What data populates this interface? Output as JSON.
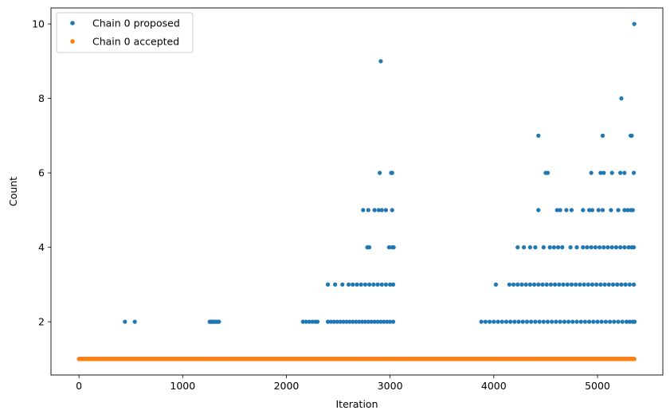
{
  "chart_data": {
    "type": "scatter",
    "title": "",
    "xlabel": "Iteration",
    "ylabel": "Count",
    "xlim": [
      -270,
      5630
    ],
    "ylim": [
      0.57,
      10.43
    ],
    "xticks": [
      0,
      1000,
      2000,
      3000,
      4000,
      5000
    ],
    "yticks": [
      2,
      4,
      6,
      8,
      10
    ],
    "legend": "top-left",
    "grid": false,
    "series": [
      {
        "name": "Chain 0 proposed",
        "color": "#1f77b4",
        "x_range": [
          0,
          5357
        ],
        "baseline_count": 1,
        "points": [
          [
            443,
            2
          ],
          [
            538,
            2
          ],
          [
            1260,
            2
          ],
          [
            1270,
            2
          ],
          [
            1280,
            2
          ],
          [
            1290,
            2
          ],
          [
            1300,
            2
          ],
          [
            1310,
            2
          ],
          [
            1320,
            2
          ],
          [
            1335,
            2
          ],
          [
            1350,
            2
          ],
          [
            2160,
            2
          ],
          [
            2190,
            2
          ],
          [
            2220,
            2
          ],
          [
            2250,
            2
          ],
          [
            2280,
            2
          ],
          [
            2300,
            2
          ],
          [
            2400,
            2
          ],
          [
            2430,
            2
          ],
          [
            2460,
            2
          ],
          [
            2490,
            2
          ],
          [
            2520,
            2
          ],
          [
            2550,
            2
          ],
          [
            2580,
            2
          ],
          [
            2610,
            2
          ],
          [
            2640,
            2
          ],
          [
            2670,
            2
          ],
          [
            2700,
            2
          ],
          [
            2730,
            2
          ],
          [
            2760,
            2
          ],
          [
            2790,
            2
          ],
          [
            2820,
            2
          ],
          [
            2850,
            2
          ],
          [
            2880,
            2
          ],
          [
            2910,
            2
          ],
          [
            2940,
            2
          ],
          [
            2970,
            2
          ],
          [
            3000,
            2
          ],
          [
            3030,
            2
          ],
          [
            2400,
            3
          ],
          [
            2470,
            3
          ],
          [
            2540,
            3
          ],
          [
            2600,
            3
          ],
          [
            2640,
            3
          ],
          [
            2680,
            3
          ],
          [
            2720,
            3
          ],
          [
            2760,
            3
          ],
          [
            2800,
            3
          ],
          [
            2840,
            3
          ],
          [
            2880,
            3
          ],
          [
            2920,
            3
          ],
          [
            2960,
            3
          ],
          [
            3000,
            3
          ],
          [
            3030,
            3
          ],
          [
            2780,
            4
          ],
          [
            2800,
            4
          ],
          [
            2990,
            4
          ],
          [
            3020,
            4
          ],
          [
            3035,
            4
          ],
          [
            2740,
            5
          ],
          [
            2790,
            5
          ],
          [
            2850,
            5
          ],
          [
            2890,
            5
          ],
          [
            2920,
            5
          ],
          [
            2960,
            5
          ],
          [
            3020,
            5
          ],
          [
            2900,
            6
          ],
          [
            3010,
            6
          ],
          [
            3020,
            6
          ],
          [
            2910,
            9
          ],
          [
            3880,
            2
          ],
          [
            3920,
            2
          ],
          [
            3960,
            2
          ],
          [
            4000,
            2
          ],
          [
            4040,
            2
          ],
          [
            4080,
            2
          ],
          [
            4120,
            2
          ],
          [
            4160,
            2
          ],
          [
            4200,
            2
          ],
          [
            4240,
            2
          ],
          [
            4280,
            2
          ],
          [
            4320,
            2
          ],
          [
            4360,
            2
          ],
          [
            4400,
            2
          ],
          [
            4440,
            2
          ],
          [
            4480,
            2
          ],
          [
            4520,
            2
          ],
          [
            4560,
            2
          ],
          [
            4600,
            2
          ],
          [
            4640,
            2
          ],
          [
            4680,
            2
          ],
          [
            4720,
            2
          ],
          [
            4760,
            2
          ],
          [
            4800,
            2
          ],
          [
            4840,
            2
          ],
          [
            4880,
            2
          ],
          [
            4920,
            2
          ],
          [
            4960,
            2
          ],
          [
            5000,
            2
          ],
          [
            5040,
            2
          ],
          [
            5080,
            2
          ],
          [
            5120,
            2
          ],
          [
            5160,
            2
          ],
          [
            5200,
            2
          ],
          [
            5240,
            2
          ],
          [
            5280,
            2
          ],
          [
            5310,
            2
          ],
          [
            5340,
            2
          ],
          [
            5357,
            2
          ],
          [
            4020,
            3
          ],
          [
            4150,
            3
          ],
          [
            4190,
            3
          ],
          [
            4230,
            3
          ],
          [
            4270,
            3
          ],
          [
            4310,
            3
          ],
          [
            4350,
            3
          ],
          [
            4390,
            3
          ],
          [
            4430,
            3
          ],
          [
            4470,
            3
          ],
          [
            4510,
            3
          ],
          [
            4550,
            3
          ],
          [
            4590,
            3
          ],
          [
            4630,
            3
          ],
          [
            4670,
            3
          ],
          [
            4710,
            3
          ],
          [
            4750,
            3
          ],
          [
            4790,
            3
          ],
          [
            4830,
            3
          ],
          [
            4870,
            3
          ],
          [
            4910,
            3
          ],
          [
            4950,
            3
          ],
          [
            4990,
            3
          ],
          [
            5030,
            3
          ],
          [
            5070,
            3
          ],
          [
            5110,
            3
          ],
          [
            5150,
            3
          ],
          [
            5190,
            3
          ],
          [
            5230,
            3
          ],
          [
            5270,
            3
          ],
          [
            5310,
            3
          ],
          [
            5350,
            3
          ],
          [
            4230,
            4
          ],
          [
            4290,
            4
          ],
          [
            4350,
            4
          ],
          [
            4400,
            4
          ],
          [
            4480,
            4
          ],
          [
            4540,
            4
          ],
          [
            4580,
            4
          ],
          [
            4620,
            4
          ],
          [
            4660,
            4
          ],
          [
            4740,
            4
          ],
          [
            4800,
            4
          ],
          [
            4860,
            4
          ],
          [
            4900,
            4
          ],
          [
            4940,
            4
          ],
          [
            4980,
            4
          ],
          [
            5020,
            4
          ],
          [
            5060,
            4
          ],
          [
            5100,
            4
          ],
          [
            5140,
            4
          ],
          [
            5180,
            4
          ],
          [
            5220,
            4
          ],
          [
            5260,
            4
          ],
          [
            5300,
            4
          ],
          [
            5330,
            4
          ],
          [
            5350,
            4
          ],
          [
            4430,
            5
          ],
          [
            4610,
            5
          ],
          [
            4640,
            5
          ],
          [
            4700,
            5
          ],
          [
            4750,
            5
          ],
          [
            4860,
            5
          ],
          [
            4920,
            5
          ],
          [
            4950,
            5
          ],
          [
            5010,
            5
          ],
          [
            5050,
            5
          ],
          [
            5130,
            5
          ],
          [
            5200,
            5
          ],
          [
            5260,
            5
          ],
          [
            5290,
            5
          ],
          [
            5320,
            5
          ],
          [
            5340,
            5
          ],
          [
            4500,
            6
          ],
          [
            4520,
            6
          ],
          [
            4940,
            6
          ],
          [
            5030,
            6
          ],
          [
            5060,
            6
          ],
          [
            5140,
            6
          ],
          [
            5220,
            6
          ],
          [
            5260,
            6
          ],
          [
            5350,
            6
          ],
          [
            4430,
            7
          ],
          [
            5050,
            7
          ],
          [
            5320,
            7
          ],
          [
            5330,
            7
          ],
          [
            5230,
            8
          ],
          [
            5355,
            10
          ]
        ]
      },
      {
        "name": "Chain 0 accepted",
        "color": "#ff7f0e",
        "x_range": [
          0,
          5357
        ],
        "baseline_count": 1,
        "points": []
      }
    ]
  }
}
